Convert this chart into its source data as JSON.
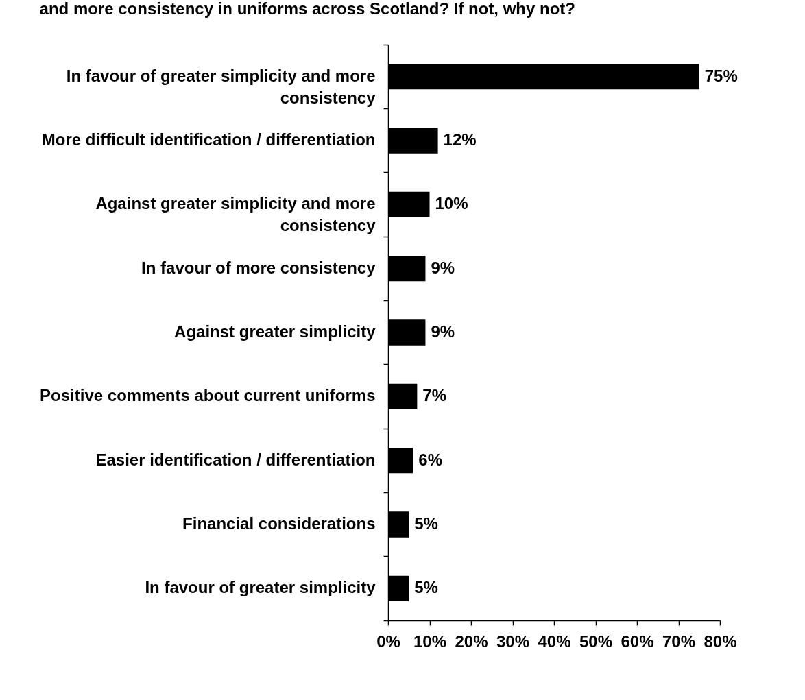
{
  "chart_data": {
    "type": "bar",
    "orientation": "horizontal",
    "title": "and more consistency in uniforms across Scotland? If not, why not?",
    "categories": [
      "In favour of greater simplicity and more consistency",
      "More difficult identification / differentiation",
      "Against greater simplicity and more consistency",
      "In favour of more consistency",
      "Against greater simplicity",
      "Positive comments about current uniforms",
      "Easier identification / differentiation",
      "Financial considerations",
      "In favour of greater simplicity"
    ],
    "values": [
      75,
      12,
      10,
      9,
      9,
      7,
      6,
      5,
      5
    ],
    "color": "#000000",
    "value_labels": [
      "75%",
      "12%",
      "10%",
      "9%",
      "9%",
      "7%",
      "6%",
      "5%",
      "5%"
    ],
    "xlim": [
      0,
      80
    ],
    "xticks": [
      {
        "value": 0,
        "label": "0%"
      },
      {
        "value": 10,
        "label": "10%"
      },
      {
        "value": 20,
        "label": "20%"
      },
      {
        "value": 30,
        "label": "30%"
      },
      {
        "value": 40,
        "label": "40%"
      },
      {
        "value": 50,
        "label": "50%"
      },
      {
        "value": 60,
        "label": "60%"
      },
      {
        "value": 70,
        "label": "70%"
      },
      {
        "value": 80,
        "label": "80%"
      }
    ]
  }
}
